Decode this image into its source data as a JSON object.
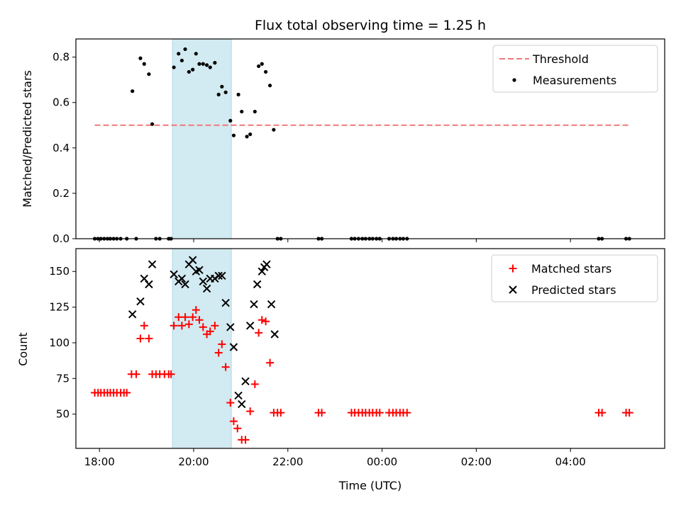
{
  "chart_data": {
    "type": "scatter",
    "title": "Flux total observing time = 1.25 h",
    "xlabel": "Time (UTC)",
    "x_tick_labels": [
      "18:00",
      "20:00",
      "22:00",
      "00:00",
      "02:00",
      "04:00"
    ],
    "x_tick_hours": [
      18,
      20,
      22,
      24,
      26,
      28
    ],
    "xlim_hours": [
      17.5,
      30.0
    ],
    "highlight_span_hours": [
      19.55,
      20.8
    ],
    "colors": {
      "threshold": "#f07878",
      "measurements": "#000000",
      "matched": "#ff0000",
      "predicted": "#000000",
      "span": "#add8e6"
    },
    "panels": [
      {
        "ylabel": "Matched/Predicted stars",
        "ylim": [
          0,
          0.88
        ],
        "y_ticks": [
          0.0,
          0.2,
          0.4,
          0.6,
          0.8
        ],
        "y_tick_labels": [
          "0.0",
          "0.2",
          "0.4",
          "0.6",
          "0.8"
        ],
        "legend": {
          "placement": "top-right",
          "entries": [
            "Threshold",
            "Measurements"
          ]
        },
        "threshold": {
          "name": "Threshold",
          "y": 0.5,
          "x_range_hours": [
            17.9,
            29.25
          ]
        },
        "measurements": {
          "name": "Measurements",
          "points": [
            [
              17.9,
              0
            ],
            [
              17.97,
              0
            ],
            [
              18.03,
              0
            ],
            [
              18.1,
              0
            ],
            [
              18.17,
              0
            ],
            [
              18.23,
              0
            ],
            [
              18.3,
              0
            ],
            [
              18.37,
              0
            ],
            [
              18.45,
              0
            ],
            [
              18.58,
              0
            ],
            [
              18.78,
              0
            ],
            [
              18.7,
              0.65
            ],
            [
              18.87,
              0.795
            ],
            [
              18.95,
              0.77
            ],
            [
              19.05,
              0.725
            ],
            [
              19.12,
              0.505
            ],
            [
              19.2,
              0
            ],
            [
              19.28,
              0
            ],
            [
              19.47,
              0
            ],
            [
              19.52,
              0
            ],
            [
              19.58,
              0.755
            ],
            [
              19.68,
              0.815
            ],
            [
              19.75,
              0.785
            ],
            [
              19.82,
              0.835
            ],
            [
              19.9,
              0.735
            ],
            [
              19.98,
              0.745
            ],
            [
              20.05,
              0.815
            ],
            [
              20.12,
              0.77
            ],
            [
              20.2,
              0.77
            ],
            [
              20.28,
              0.765
            ],
            [
              20.35,
              0.755
            ],
            [
              20.45,
              0.775
            ],
            [
              20.53,
              0.635
            ],
            [
              20.6,
              0.67
            ],
            [
              20.68,
              0.645
            ],
            [
              20.78,
              0.52
            ],
            [
              20.85,
              0.455
            ],
            [
              20.95,
              0.635
            ],
            [
              21.02,
              0.56
            ],
            [
              21.13,
              0.45
            ],
            [
              21.2,
              0.46
            ],
            [
              21.3,
              0.56
            ],
            [
              21.38,
              0.76
            ],
            [
              21.45,
              0.77
            ],
            [
              21.53,
              0.735
            ],
            [
              21.62,
              0.675
            ],
            [
              21.7,
              0.48
            ],
            [
              21.78,
              0
            ],
            [
              21.85,
              0
            ],
            [
              22.65,
              0
            ],
            [
              22.72,
              0
            ],
            [
              23.35,
              0
            ],
            [
              23.42,
              0
            ],
            [
              23.5,
              0
            ],
            [
              23.58,
              0
            ],
            [
              23.65,
              0
            ],
            [
              23.73,
              0
            ],
            [
              23.8,
              0
            ],
            [
              23.88,
              0
            ],
            [
              23.95,
              0
            ],
            [
              24.15,
              0
            ],
            [
              24.23,
              0
            ],
            [
              24.3,
              0
            ],
            [
              24.38,
              0
            ],
            [
              24.45,
              0
            ],
            [
              24.53,
              0
            ],
            [
              28.6,
              0
            ],
            [
              28.67,
              0
            ],
            [
              29.18,
              0
            ],
            [
              29.25,
              0
            ]
          ]
        }
      },
      {
        "ylabel": "Count",
        "ylim": [
          26,
          166
        ],
        "y_ticks": [
          50,
          75,
          100,
          125,
          150
        ],
        "y_tick_labels": [
          "50",
          "75",
          "100",
          "125",
          "150"
        ],
        "legend": {
          "placement": "top-right",
          "entries": [
            "Matched stars",
            "Predicted stars"
          ]
        },
        "series": [
          {
            "name": "Matched stars",
            "marker": "plus",
            "points": [
              [
                17.9,
                65
              ],
              [
                17.97,
                65
              ],
              [
                18.03,
                65
              ],
              [
                18.1,
                65
              ],
              [
                18.17,
                65
              ],
              [
                18.23,
                65
              ],
              [
                18.3,
                65
              ],
              [
                18.37,
                65
              ],
              [
                18.45,
                65
              ],
              [
                18.52,
                65
              ],
              [
                18.58,
                65
              ],
              [
                18.68,
                78
              ],
              [
                18.78,
                78
              ],
              [
                18.87,
                103
              ],
              [
                18.95,
                112
              ],
              [
                19.05,
                103
              ],
              [
                19.12,
                78
              ],
              [
                19.2,
                78
              ],
              [
                19.28,
                78
              ],
              [
                19.38,
                78
              ],
              [
                19.47,
                78
              ],
              [
                19.52,
                78
              ],
              [
                19.58,
                112
              ],
              [
                19.68,
                118
              ],
              [
                19.75,
                112
              ],
              [
                19.82,
                118
              ],
              [
                19.9,
                113
              ],
              [
                19.98,
                118
              ],
              [
                20.05,
                123
              ],
              [
                20.12,
                116
              ],
              [
                20.2,
                111
              ],
              [
                20.28,
                106
              ],
              [
                20.35,
                108
              ],
              [
                20.45,
                112
              ],
              [
                20.53,
                93
              ],
              [
                20.6,
                99
              ],
              [
                20.68,
                83
              ],
              [
                20.78,
                58
              ],
              [
                20.85,
                45
              ],
              [
                20.93,
                40
              ],
              [
                21.02,
                32
              ],
              [
                21.1,
                32
              ],
              [
                21.2,
                52
              ],
              [
                21.3,
                71
              ],
              [
                21.38,
                107
              ],
              [
                21.45,
                116
              ],
              [
                21.53,
                115
              ],
              [
                21.62,
                86
              ],
              [
                21.7,
                51
              ],
              [
                21.78,
                51
              ],
              [
                21.85,
                51
              ],
              [
                22.65,
                51
              ],
              [
                22.72,
                51
              ],
              [
                23.35,
                51
              ],
              [
                23.42,
                51
              ],
              [
                23.5,
                51
              ],
              [
                23.58,
                51
              ],
              [
                23.65,
                51
              ],
              [
                23.73,
                51
              ],
              [
                23.8,
                51
              ],
              [
                23.88,
                51
              ],
              [
                23.95,
                51
              ],
              [
                24.15,
                51
              ],
              [
                24.23,
                51
              ],
              [
                24.3,
                51
              ],
              [
                24.38,
                51
              ],
              [
                24.45,
                51
              ],
              [
                24.53,
                51
              ],
              [
                28.6,
                51
              ],
              [
                28.67,
                51
              ],
              [
                29.18,
                51
              ],
              [
                29.25,
                51
              ]
            ]
          },
          {
            "name": "Predicted stars",
            "marker": "x",
            "points": [
              [
                18.7,
                120
              ],
              [
                18.87,
                129
              ],
              [
                18.95,
                145
              ],
              [
                19.05,
                141
              ],
              [
                19.12,
                155
              ],
              [
                19.58,
                148
              ],
              [
                19.68,
                143
              ],
              [
                19.75,
                145
              ],
              [
                19.82,
                141
              ],
              [
                19.9,
                155
              ],
              [
                19.98,
                158
              ],
              [
                20.05,
                150
              ],
              [
                20.12,
                151
              ],
              [
                20.2,
                143
              ],
              [
                20.28,
                138
              ],
              [
                20.35,
                145
              ],
              [
                20.45,
                145
              ],
              [
                20.53,
                147
              ],
              [
                20.6,
                147
              ],
              [
                20.68,
                128
              ],
              [
                20.78,
                111
              ],
              [
                20.85,
                97
              ],
              [
                20.95,
                63
              ],
              [
                21.02,
                57
              ],
              [
                21.1,
                73
              ],
              [
                21.2,
                112
              ],
              [
                21.28,
                127
              ],
              [
                21.35,
                141
              ],
              [
                21.45,
                150
              ],
              [
                21.5,
                153
              ],
              [
                21.55,
                155
              ],
              [
                21.65,
                127
              ],
              [
                21.72,
                106
              ]
            ]
          }
        ]
      }
    ]
  }
}
